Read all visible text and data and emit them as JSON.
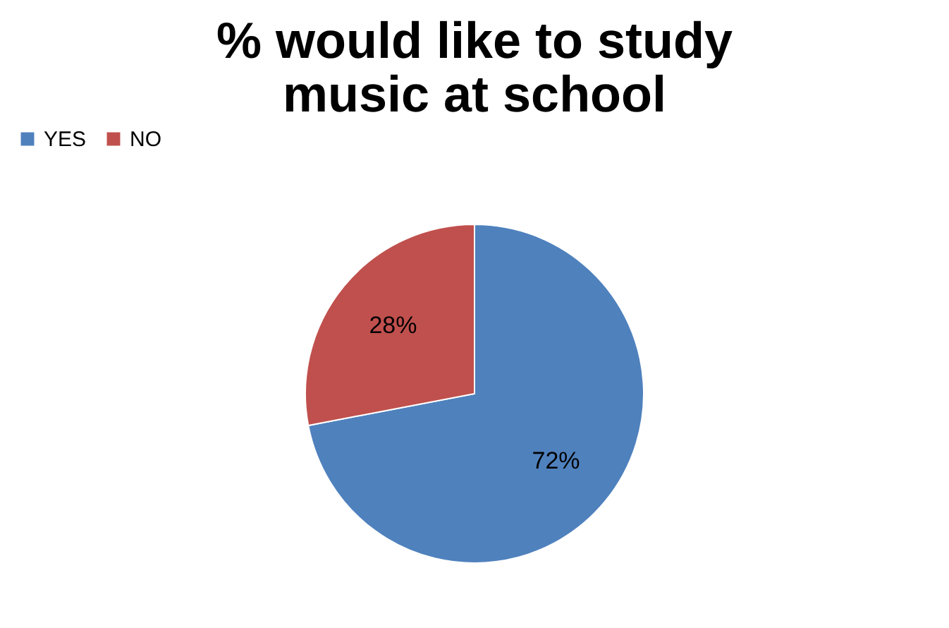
{
  "chart_data": {
    "type": "pie",
    "title": "% would like to study\nmusic at school",
    "categories": [
      "YES",
      "NO"
    ],
    "values": [
      72,
      28
    ],
    "value_labels": [
      "72%",
      "28%"
    ],
    "colors": [
      "#4f81bd",
      "#c0504d"
    ],
    "legend": "top"
  }
}
